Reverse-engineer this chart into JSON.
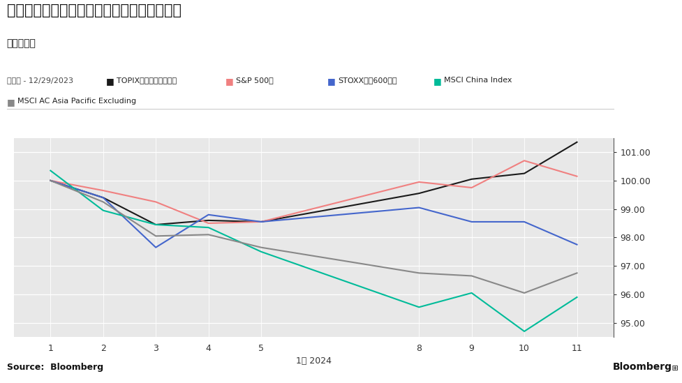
{
  "title": "年初来の日・米・欧・中・アジアの株価推移",
  "subtitle": "ドルベース",
  "legend_prefix": "標準化 - 12/29/2023",
  "xlabel": "1月 2024",
  "source": "Source:  Bloomberg",
  "fig_bg_color": "#ffffff",
  "plot_bg_color": "#e8e8e8",
  "x_ticks": [
    1,
    2,
    3,
    4,
    5,
    8,
    9,
    10,
    11
  ],
  "ylim": [
    94.5,
    101.5
  ],
  "yticks": [
    95.0,
    96.0,
    97.0,
    98.0,
    99.0,
    100.0,
    101.0
  ],
  "series": [
    {
      "name": "TOPIX（東証株価指数）",
      "color": "#1a1a1a",
      "values": [
        100.0,
        99.4,
        98.45,
        98.6,
        98.55,
        99.55,
        100.05,
        100.25,
        101.35
      ]
    },
    {
      "name": "S&P 500種",
      "color": "#f08080",
      "values": [
        100.0,
        99.65,
        99.25,
        98.5,
        98.55,
        99.95,
        99.75,
        100.7,
        100.15
      ]
    },
    {
      "name": "STOXX欧州600指数",
      "color": "#4466cc",
      "values": [
        100.0,
        99.4,
        97.65,
        98.8,
        98.55,
        99.05,
        98.55,
        98.55,
        97.75
      ]
    },
    {
      "name": "MSCI China Index",
      "color": "#00bb99",
      "values": [
        100.35,
        98.95,
        98.45,
        98.35,
        97.5,
        95.55,
        96.05,
        94.7,
        95.9
      ]
    },
    {
      "name": "MSCI AC Asia Pacific Excluding",
      "color": "#888888",
      "values": [
        100.0,
        99.25,
        98.05,
        98.1,
        97.65,
        96.75,
        96.65,
        96.05,
        96.75
      ]
    }
  ]
}
